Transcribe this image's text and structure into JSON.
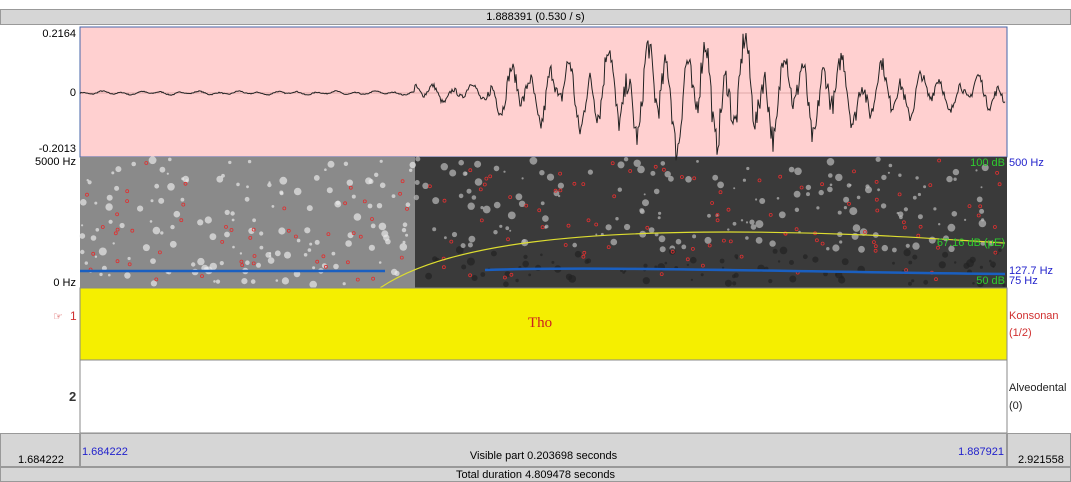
{
  "header": {
    "cursor": "1.888391 (0.530 / s)"
  },
  "waveform": {
    "max": "0.2164",
    "zero": "0",
    "min": "-0.2013"
  },
  "spectrogram": {
    "freq_top": "5000 Hz",
    "freq_bottom": "0 Hz",
    "intensity_top": "100 dB",
    "pitch_top": "500 Hz",
    "intensity_value": "67.16 dB (µE)",
    "pitch_value": "127.7 Hz",
    "intensity_bottom": "50 dB",
    "pitch_bottom": "75 Hz"
  },
  "tiers": [
    {
      "pointer": "☞",
      "number": "1",
      "interval": "Tho",
      "name": "Konsonan",
      "count": "(1/2)"
    },
    {
      "number": "2",
      "name": "Alveodental",
      "count": "(0)"
    }
  ],
  "footer": {
    "window_start": "1.684222",
    "visible_start": "1.684222",
    "visible_part": "Visible part 0.203698 seconds",
    "visible_end": "1.887921",
    "window_end": "2.921558",
    "total": "Total duration 4.809478 seconds"
  }
}
